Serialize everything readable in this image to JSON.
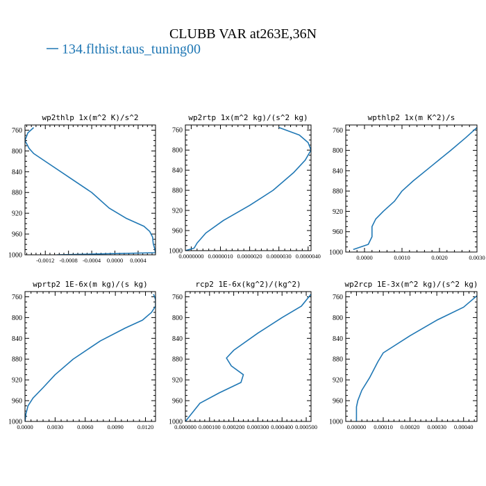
{
  "figure": {
    "title": "CLUBB VAR at263E,36N",
    "legend_label": "134.flthist.taus_tuning00",
    "legend_color": "#1f77b4"
  },
  "chart_data": [
    {
      "type": "line",
      "title": "wp2thlp  1x(m^2 K)/s^2",
      "xlim": [
        -0.00155,
        0.0007
      ],
      "ylim": [
        1000,
        750
      ],
      "xticks": [
        -0.0012,
        -0.0008,
        -0.0004,
        0.0,
        0.0004
      ],
      "xtick_labels": [
        "-0.0012",
        "-0.0008",
        "-0.0004",
        "0.0000",
        "0.0004"
      ],
      "yticks": [
        760,
        800,
        840,
        880,
        920,
        960,
        1000
      ],
      "series": [
        {
          "x": [
            -0.0014,
            -0.0015,
            -0.00155,
            -0.00148,
            -0.0014,
            -0.0012,
            -0.0008,
            -0.0004,
            -0.0001,
            0.0002,
            0.0005,
            0.0006,
            0.00065,
            0.00066,
            0.00068,
            0.0007,
            -0.001
          ],
          "y": [
            755,
            765,
            780,
            795,
            805,
            820,
            850,
            880,
            910,
            930,
            945,
            955,
            966,
            978,
            986,
            996,
            1000
          ]
        }
      ]
    },
    {
      "type": "line",
      "title": "wp2rtp  1x(m^2 kg)/(s^2 kg)",
      "xlim": [
        -2e-07,
        4.1e-06
      ],
      "ylim": [
        1000,
        750
      ],
      "xticks": [
        0.0,
        1e-06,
        2e-06,
        3e-06,
        4e-06
      ],
      "xtick_labels": [
        "0.0000000",
        "0.0000010",
        "0.0000020",
        "0.0000030",
        "0.0000040"
      ],
      "yticks": [
        760,
        800,
        840,
        880,
        920,
        960,
        1000
      ],
      "series": [
        {
          "x": [
            3e-06,
            3.7e-06,
            4e-06,
            4.1e-06,
            3.9e-06,
            3.5e-06,
            2.8e-06,
            2e-06,
            1.1e-06,
            5e-07,
            2e-07,
            1e-07,
            -2e-07
          ],
          "y": [
            755,
            770,
            785,
            800,
            820,
            845,
            880,
            910,
            940,
            965,
            985,
            995,
            1000
          ]
        }
      ]
    },
    {
      "type": "line",
      "title": "wpthlp2  1x(m K^2)/s",
      "xlim": [
        -0.0005,
        0.003
      ],
      "ylim": [
        1000,
        750
      ],
      "xticks": [
        0.0,
        0.001,
        0.002,
        0.003
      ],
      "xtick_labels": [
        "0.0000",
        "0.0010",
        "0.0020",
        "0.0030"
      ],
      "yticks": [
        760,
        800,
        840,
        880,
        920,
        960,
        1000
      ],
      "series": [
        {
          "x": [
            0.003,
            0.0027,
            0.0023,
            0.0018,
            0.0013,
            0.001,
            0.0008,
            0.0005,
            0.0003,
            0.0002,
            0.0002,
            0.0001,
            -0.0003
          ],
          "y": [
            755,
            775,
            800,
            830,
            860,
            880,
            900,
            920,
            935,
            950,
            970,
            985,
            995
          ]
        }
      ]
    },
    {
      "type": "line",
      "title": "wprtp2  1E-6x(m kg)/(s kg)",
      "xlim": [
        0.0,
        0.013
      ],
      "ylim": [
        1000,
        750
      ],
      "xticks": [
        0.0,
        0.003,
        0.006,
        0.009,
        0.012
      ],
      "xtick_labels": [
        "0.0000",
        "0.0030",
        "0.0060",
        "0.0090",
        "0.0120"
      ],
      "yticks": [
        760,
        800,
        840,
        880,
        920,
        960,
        1000
      ],
      "series": [
        {
          "x": [
            0.0128,
            0.013,
            0.013,
            0.0126,
            0.0117,
            0.01,
            0.0075,
            0.0048,
            0.003,
            0.0018,
            0.0008,
            0.0003,
            0.0001,
            0.0
          ],
          "y": [
            755,
            765,
            778,
            790,
            805,
            820,
            845,
            880,
            910,
            935,
            955,
            970,
            985,
            1000
          ]
        }
      ]
    },
    {
      "type": "line",
      "title": "rcp2  1E-6x(kg^2)/(kg^2)",
      "xlim": [
        0.0,
        0.00052
      ],
      "ylim": [
        1000,
        750
      ],
      "xticks": [
        0.0,
        0.0001,
        0.0002,
        0.0003,
        0.0004,
        0.0005
      ],
      "xtick_labels": [
        "0.000000",
        "0.000100",
        "0.000200",
        "0.000300",
        "0.000400",
        "0.000500"
      ],
      "yticks": [
        760,
        800,
        840,
        880,
        920,
        960,
        1000
      ],
      "series": [
        {
          "x": [
            0.00052,
            0.00048,
            0.0004,
            0.0003,
            0.0002,
            0.00017,
            0.00019,
            0.00024,
            0.00023,
            0.00014,
            6e-05,
            0.0
          ],
          "y": [
            755,
            778,
            800,
            830,
            863,
            878,
            893,
            910,
            925,
            945,
            965,
            1000
          ]
        }
      ]
    },
    {
      "type": "line",
      "title": "wp2rcp  1E-3x(m^2 kg)/(s^2 kg)",
      "xlim": [
        -4e-05,
        0.00045
      ],
      "ylim": [
        1000,
        750
      ],
      "xticks": [
        0.0,
        0.0001,
        0.0002,
        0.0003,
        0.0004
      ],
      "xtick_labels": [
        "0.00000",
        "0.00010",
        "0.00020",
        "0.00030",
        "0.00040"
      ],
      "yticks": [
        760,
        800,
        840,
        880,
        920,
        960,
        1000
      ],
      "series": [
        {
          "x": [
            0.00045,
            0.0004,
            0.0003,
            0.0002,
            0.0001,
            8e-05,
            5e-05,
            2e-05,
            5e-06,
            0.0,
            0.0,
            0.0
          ],
          "y": [
            758,
            780,
            805,
            835,
            868,
            885,
            915,
            940,
            960,
            972,
            990,
            1000
          ]
        }
      ]
    }
  ]
}
